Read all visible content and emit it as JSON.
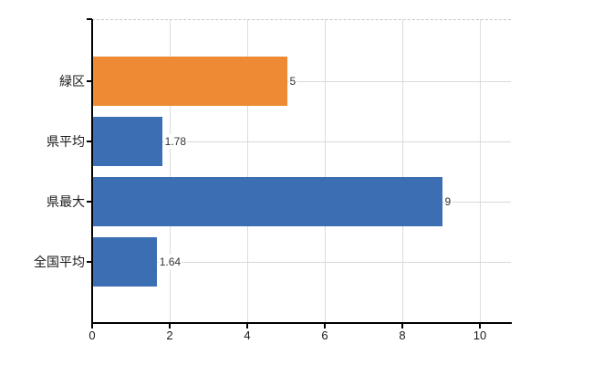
{
  "chart_data": {
    "type": "bar",
    "orientation": "horizontal",
    "title": "",
    "xlabel": "",
    "ylabel": "",
    "categories": [
      "緑区",
      "県平均",
      "県最大",
      "全国平均"
    ],
    "values": [
      5,
      1.78,
      9,
      1.64
    ],
    "value_labels": [
      "5",
      "1.78",
      "9",
      "1.64"
    ],
    "bar_colors": [
      "#ED8A33",
      "#3B6EB3",
      "#3B6EB3",
      "#3B6EB3"
    ],
    "x_ticks": [
      0,
      2,
      4,
      6,
      8,
      10
    ],
    "x_tick_labels": [
      "0",
      "2",
      "4",
      "6",
      "8",
      "10"
    ],
    "xlim": [
      0,
      10.8
    ],
    "grid": true,
    "legend_position": "none"
  },
  "colors": {
    "bar_orange": "#ED8A33",
    "bar_blue": "#3B6EB3",
    "axis": "#000000",
    "gridline_horizontal": "#d6dad6",
    "gridline_vertical": "#dcdcdc",
    "top_border_dashed": "#c8c8c8",
    "text": "#1a1a1a",
    "value_text": "#333333",
    "background": "#ffffff"
  }
}
